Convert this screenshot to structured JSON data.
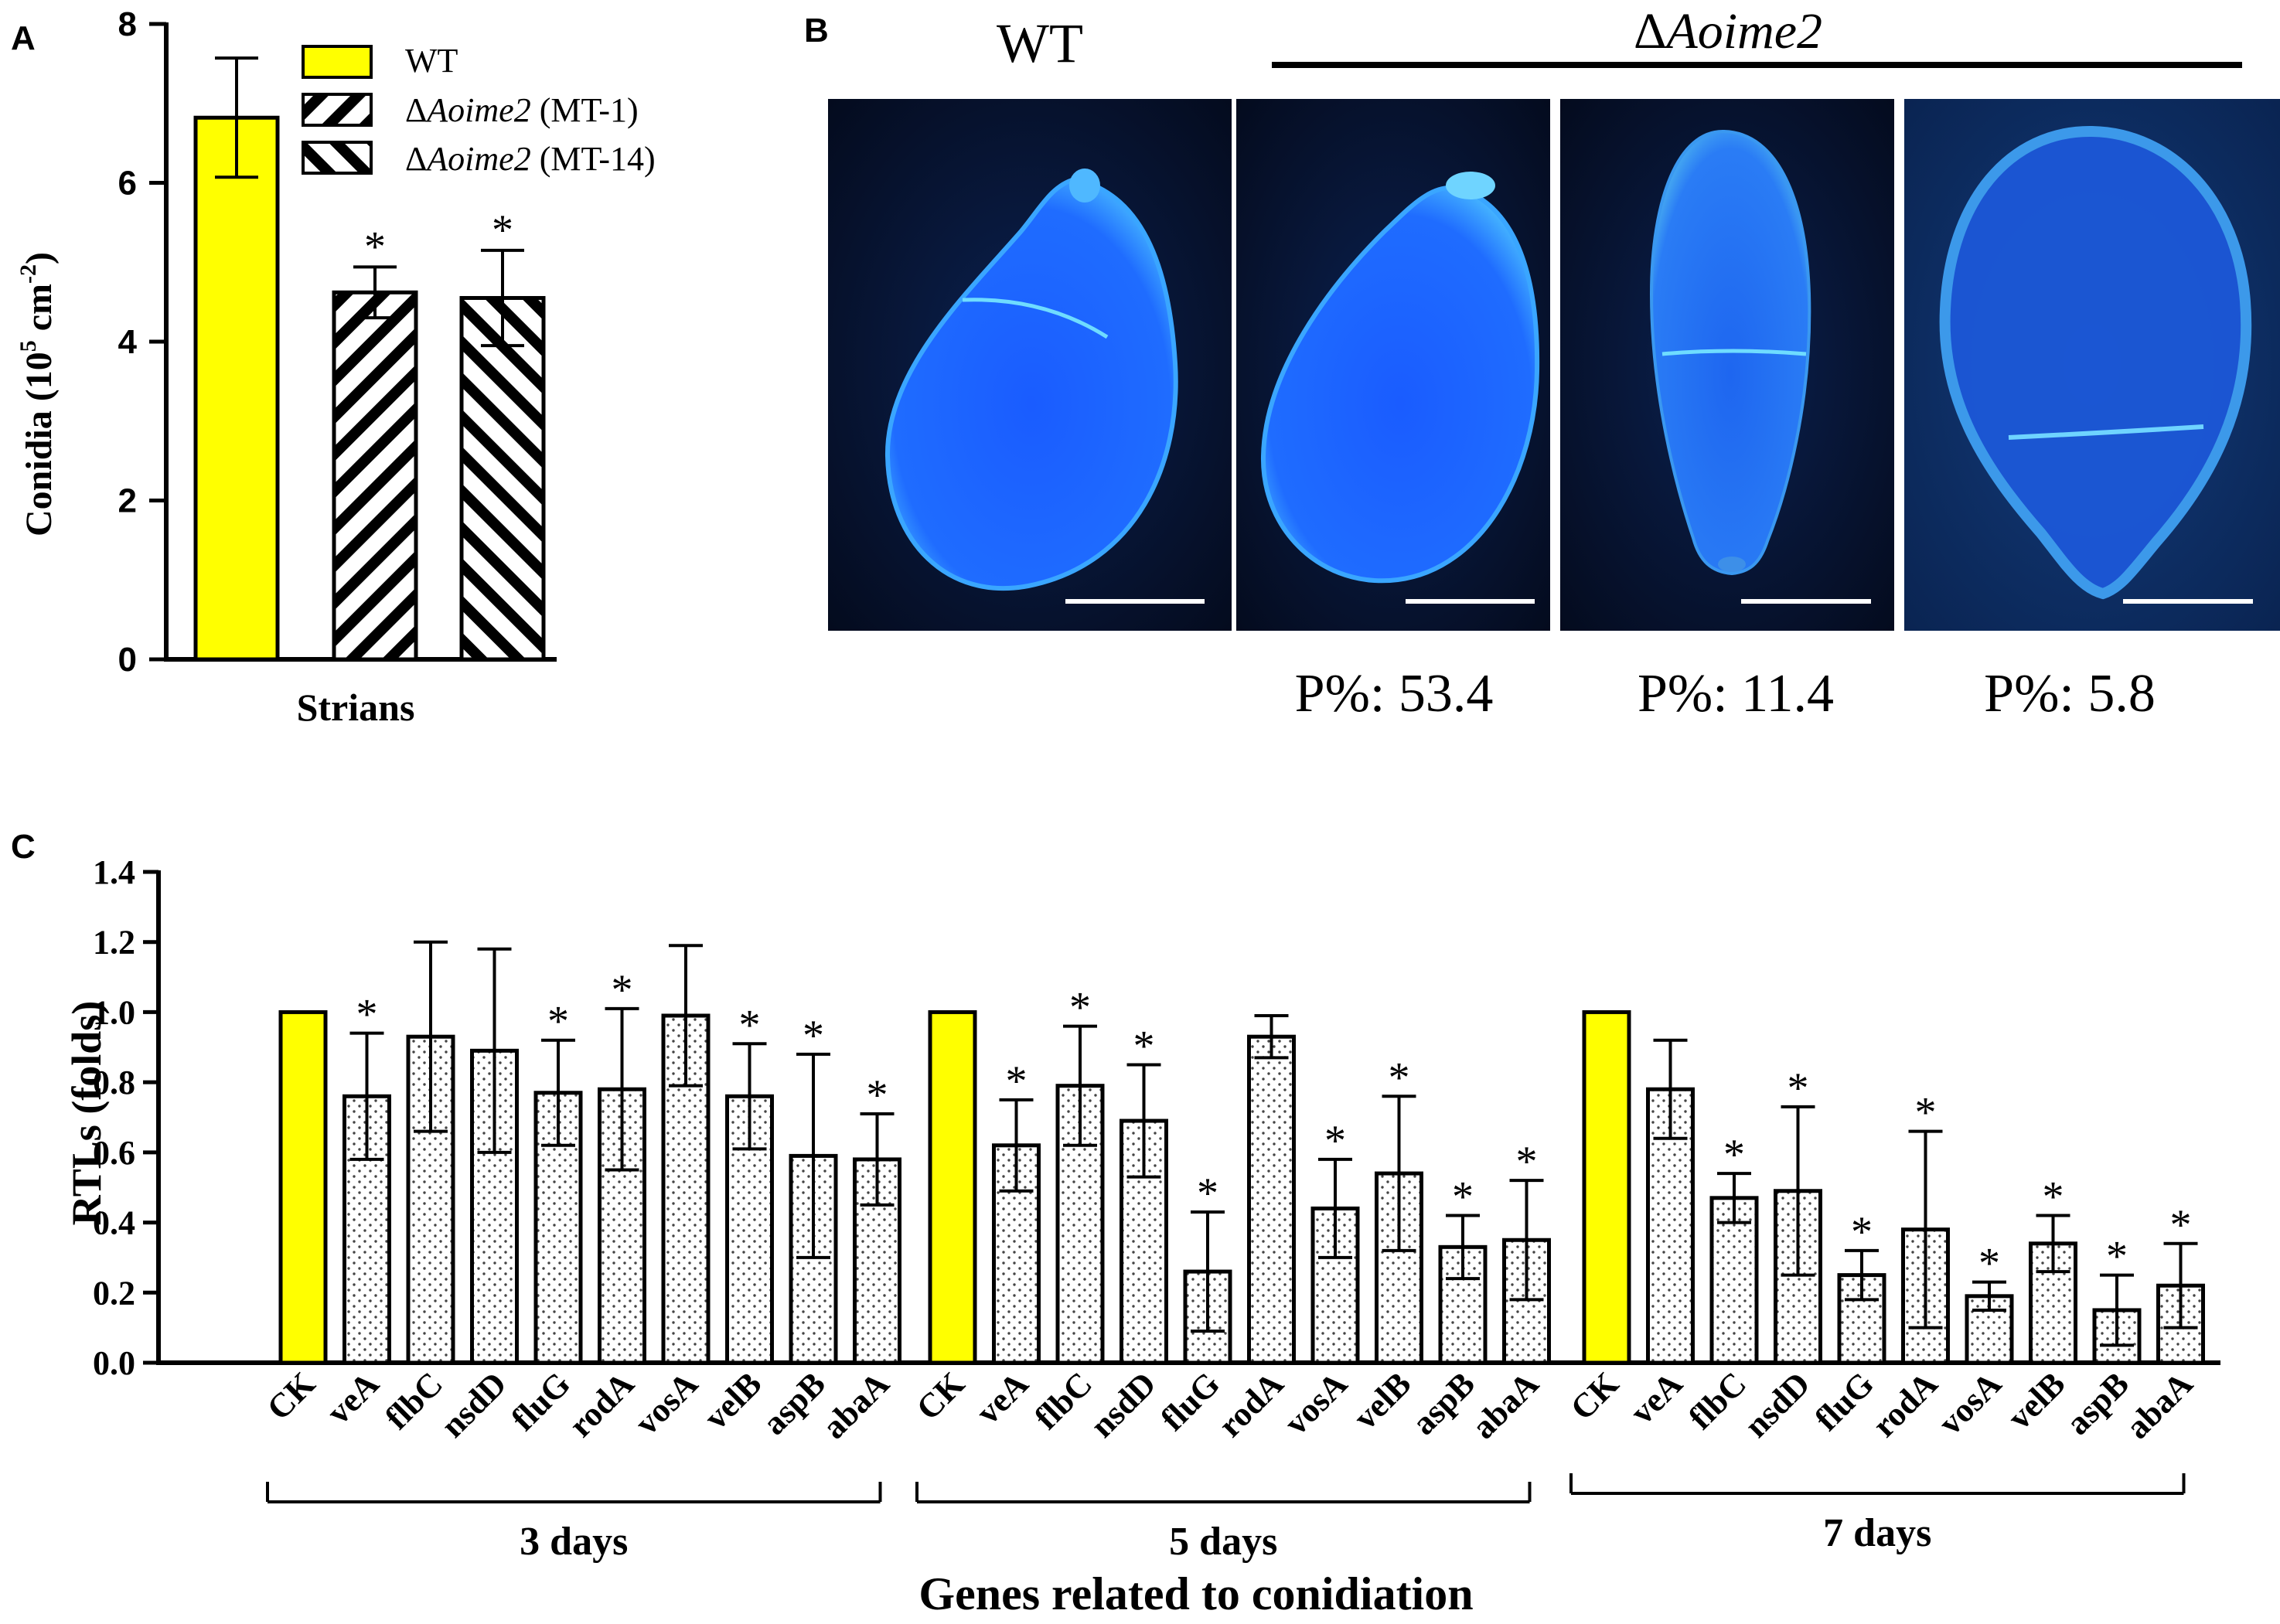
{
  "figure_width": 2949,
  "figure_height": 2101,
  "colors": {
    "yellow": "#ffff00",
    "black": "#000000",
    "white": "#ffffff",
    "micro_bg_dark": "#05102a",
    "micro_bg_mid": "#0b2150",
    "spore_blue": "#1f6fff",
    "spore_glow": "#3fa9ff"
  },
  "panels": {
    "a": {
      "letter": "A"
    },
    "b": {
      "letter": "B"
    },
    "c": {
      "letter": "C"
    }
  },
  "chart_data": [
    {
      "panel": "A",
      "type": "bar",
      "ylabel_main": "Conidia (10",
      "ylabel_sup1": "5",
      "ylabel_mid": " cm",
      "ylabel_sup2": "-2",
      "ylabel_end": ")",
      "xlabel": "Strians",
      "ylim": [
        0,
        8
      ],
      "yticks": [
        "0",
        "2",
        "4",
        "6",
        "8"
      ],
      "bars": [
        {
          "name": "WT",
          "value": 6.82,
          "err": 0.75,
          "fill": "yellow",
          "star": ""
        },
        {
          "name": "ΔAoime2 (MT-1)",
          "value": 4.62,
          "err": 0.32,
          "fill": "hatch-down",
          "star": "*"
        },
        {
          "name": "ΔAoime2 (MT-14)",
          "value": 4.55,
          "err": 0.6,
          "fill": "hatch-up",
          "star": "*"
        }
      ],
      "legend": [
        {
          "label": "WT",
          "italic": "",
          "suffix": ""
        },
        {
          "label": "Δ",
          "italic": "Aoime2",
          "suffix": " (MT-1)"
        },
        {
          "label": "Δ",
          "italic": "Aoime2",
          "suffix": " (MT-14)"
        }
      ]
    },
    {
      "panel": "C",
      "type": "bar",
      "ylabel": "RTLs  (folds)",
      "xlabel": "Genes related to conidiation",
      "ylim": [
        0,
        1.4
      ],
      "yticks": [
        "0.0",
        "0.2",
        "0.4",
        "0.6",
        "0.8",
        "1.0",
        "1.2",
        "1.4"
      ],
      "groups": [
        {
          "name": "3 days",
          "bars": [
            {
              "gene": "CK",
              "value": 1.0,
              "err": 0,
              "star": ""
            },
            {
              "gene": "veA",
              "value": 0.76,
              "err": 0.18,
              "star": "*"
            },
            {
              "gene": "flbC",
              "value": 0.93,
              "err": 0.27,
              "star": ""
            },
            {
              "gene": "nsdD",
              "value": 0.89,
              "err": 0.29,
              "star": ""
            },
            {
              "gene": "fluG",
              "value": 0.77,
              "err": 0.15,
              "star": "*"
            },
            {
              "gene": "rodA",
              "value": 0.78,
              "err": 0.23,
              "star": "*"
            },
            {
              "gene": "vosA",
              "value": 0.99,
              "err": 0.2,
              "star": ""
            },
            {
              "gene": "velB",
              "value": 0.76,
              "err": 0.15,
              "star": "*"
            },
            {
              "gene": "aspB",
              "value": 0.59,
              "err": 0.29,
              "star": "*"
            },
            {
              "gene": "abaA",
              "value": 0.58,
              "err": 0.13,
              "star": "*"
            }
          ]
        },
        {
          "name": "5 days",
          "bars": [
            {
              "gene": "CK",
              "value": 1.0,
              "err": 0,
              "star": ""
            },
            {
              "gene": "veA",
              "value": 0.62,
              "err": 0.13,
              "star": "*"
            },
            {
              "gene": "flbC",
              "value": 0.79,
              "err": 0.17,
              "star": "*"
            },
            {
              "gene": "nsdD",
              "value": 0.69,
              "err": 0.16,
              "star": "*"
            },
            {
              "gene": "fluG",
              "value": 0.26,
              "err": 0.17,
              "star": "*"
            },
            {
              "gene": "rodA",
              "value": 0.93,
              "err": 0.06,
              "star": ""
            },
            {
              "gene": "vosA",
              "value": 0.44,
              "err": 0.14,
              "star": "*"
            },
            {
              "gene": "velB",
              "value": 0.54,
              "err": 0.22,
              "star": "*"
            },
            {
              "gene": "aspB",
              "value": 0.33,
              "err": 0.09,
              "star": "*"
            },
            {
              "gene": "abaA",
              "value": 0.35,
              "err": 0.17,
              "star": "*"
            }
          ]
        },
        {
          "name": "7 days",
          "bars": [
            {
              "gene": "CK",
              "value": 1.0,
              "err": 0,
              "star": ""
            },
            {
              "gene": "veA",
              "value": 0.78,
              "err": 0.14,
              "star": ""
            },
            {
              "gene": "flbC",
              "value": 0.47,
              "err": 0.07,
              "star": "*"
            },
            {
              "gene": "nsdD",
              "value": 0.49,
              "err": 0.24,
              "star": "*"
            },
            {
              "gene": "fluG",
              "value": 0.25,
              "err": 0.07,
              "star": "*"
            },
            {
              "gene": "rodA",
              "value": 0.38,
              "err": 0.28,
              "star": "*"
            },
            {
              "gene": "vosA",
              "value": 0.19,
              "err": 0.04,
              "star": "*"
            },
            {
              "gene": "velB",
              "value": 0.34,
              "err": 0.08,
              "star": "*"
            },
            {
              "gene": "aspB",
              "value": 0.15,
              "err": 0.1,
              "star": "*"
            },
            {
              "gene": "abaA",
              "value": 0.22,
              "err": 0.12,
              "star": "*"
            }
          ]
        }
      ]
    }
  ],
  "panel_b": {
    "wt_label": "WT",
    "mutant_delta": "Δ",
    "mutant_italic": "Aoime2",
    "percent_labels": [
      "P%: 53.4",
      "P%: 11.4",
      "P%: 5.8"
    ]
  }
}
